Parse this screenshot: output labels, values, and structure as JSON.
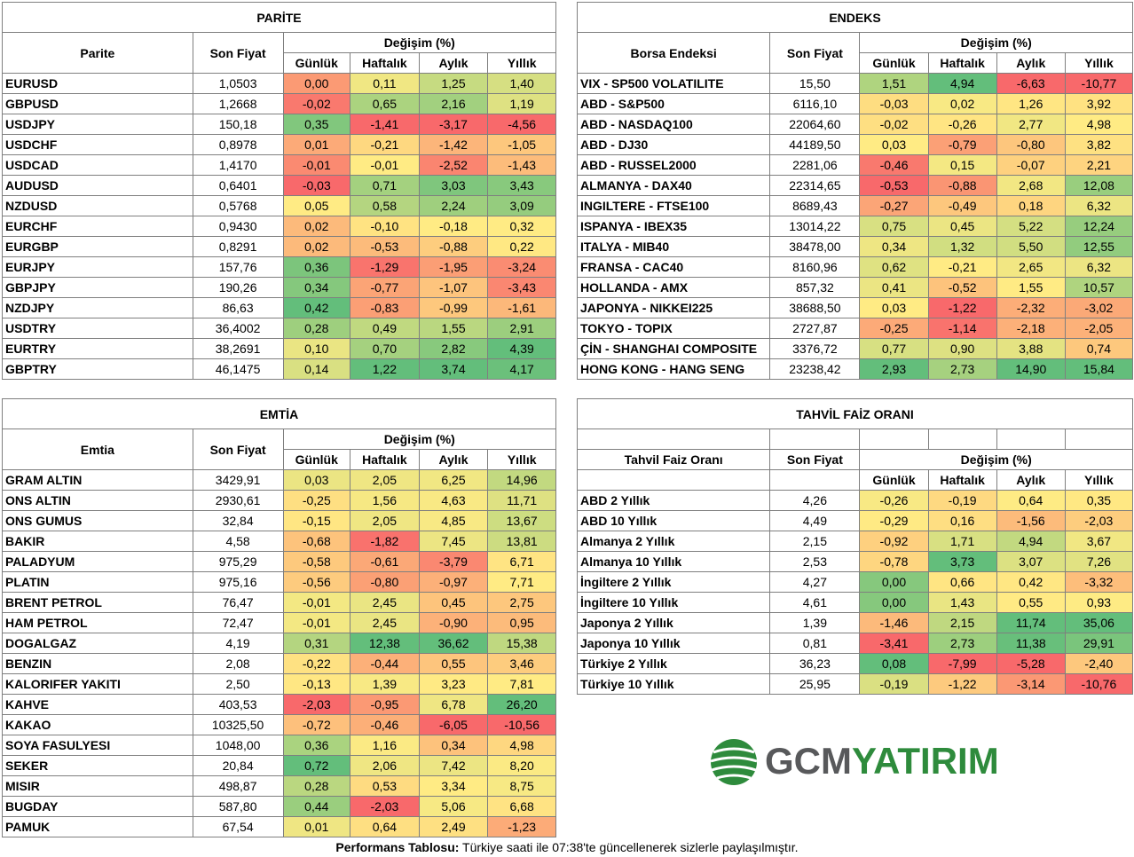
{
  "parite": {
    "title": "PARİTE",
    "name_header": "Parite",
    "price_header": "Son Fiyat",
    "change_header": "Değişim (%)",
    "periods": [
      "Günlük",
      "Haftalık",
      "Aylık",
      "Yıllık"
    ],
    "rows": [
      {
        "name": "EURUSD",
        "price": "1,0503",
        "d": "0,00",
        "w": "0,11",
        "m": "1,25",
        "y": "1,40"
      },
      {
        "name": "GBPUSD",
        "price": "1,2668",
        "d": "-0,02",
        "w": "0,65",
        "m": "2,16",
        "y": "1,19"
      },
      {
        "name": "USDJPY",
        "price": "150,18",
        "d": "0,35",
        "w": "-1,41",
        "m": "-3,17",
        "y": "-4,56"
      },
      {
        "name": "USDCHF",
        "price": "0,8978",
        "d": "0,01",
        "w": "-0,21",
        "m": "-1,42",
        "y": "-1,05"
      },
      {
        "name": "USDCAD",
        "price": "1,4170",
        "d": "-0,01",
        "w": "-0,01",
        "m": "-2,52",
        "y": "-1,43"
      },
      {
        "name": "AUDUSD",
        "price": "0,6401",
        "d": "-0,03",
        "w": "0,71",
        "m": "3,03",
        "y": "3,43"
      },
      {
        "name": "NZDUSD",
        "price": "0,5768",
        "d": "0,05",
        "w": "0,58",
        "m": "2,24",
        "y": "3,09"
      },
      {
        "name": "EURCHF",
        "price": "0,9430",
        "d": "0,02",
        "w": "-0,10",
        "m": "-0,18",
        "y": "0,32"
      },
      {
        "name": "EURGBP",
        "price": "0,8291",
        "d": "0,02",
        "w": "-0,53",
        "m": "-0,88",
        "y": "0,22"
      },
      {
        "name": "EURJPY",
        "price": "157,76",
        "d": "0,36",
        "w": "-1,29",
        "m": "-1,95",
        "y": "-3,24"
      },
      {
        "name": "GBPJPY",
        "price": "190,26",
        "d": "0,34",
        "w": "-0,77",
        "m": "-1,07",
        "y": "-3,43"
      },
      {
        "name": "NZDJPY",
        "price": "86,63",
        "d": "0,42",
        "w": "-0,83",
        "m": "-0,99",
        "y": "-1,61"
      },
      {
        "name": "USDTRY",
        "price": "36,4002",
        "d": "0,28",
        "w": "0,49",
        "m": "1,55",
        "y": "2,91"
      },
      {
        "name": "EURTRY",
        "price": "38,2691",
        "d": "0,10",
        "w": "0,70",
        "m": "2,82",
        "y": "4,39"
      },
      {
        "name": "GBPTRY",
        "price": "46,1475",
        "d": "0,14",
        "w": "1,22",
        "m": "3,74",
        "y": "4,17"
      }
    ]
  },
  "endeks": {
    "title": "ENDEKS",
    "name_header": "Borsa Endeksi",
    "price_header": "Son Fiyat",
    "change_header": "Değişim (%)",
    "periods": [
      "Günlük",
      "Haftalık",
      "Aylık",
      "Yıllık"
    ],
    "rows": [
      {
        "name": "VIX  - SP500 VOLATILITE",
        "price": "15,50",
        "d": "1,51",
        "w": "4,94",
        "m": "-6,63",
        "y": "-10,77"
      },
      {
        "name": "ABD - S&P500",
        "price": "6116,10",
        "d": "-0,03",
        "w": "0,02",
        "m": "1,26",
        "y": "3,92"
      },
      {
        "name": "ABD - NASDAQ100",
        "price": "22064,60",
        "d": "-0,02",
        "w": "-0,26",
        "m": "2,77",
        "y": "4,98"
      },
      {
        "name": "ABD - DJ30",
        "price": "44189,50",
        "d": "0,03",
        "w": "-0,79",
        "m": "-0,80",
        "y": "3,82"
      },
      {
        "name": "ABD - RUSSEL2000",
        "price": "2281,06",
        "d": "-0,46",
        "w": "0,15",
        "m": "-0,07",
        "y": "2,21"
      },
      {
        "name": "ALMANYA - DAX40",
        "price": "22314,65",
        "d": "-0,53",
        "w": "-0,88",
        "m": "2,68",
        "y": "12,08"
      },
      {
        "name": "INGILTERE - FTSE100",
        "price": "8689,43",
        "d": "-0,27",
        "w": "-0,49",
        "m": "0,18",
        "y": "6,32"
      },
      {
        "name": "ISPANYA - IBEX35",
        "price": "13014,22",
        "d": "0,75",
        "w": "0,45",
        "m": "5,22",
        "y": "12,24"
      },
      {
        "name": "ITALYA - MIB40",
        "price": "38478,00",
        "d": "0,34",
        "w": "1,32",
        "m": "5,50",
        "y": "12,55"
      },
      {
        "name": "FRANSA - CAC40",
        "price": "8160,96",
        "d": "0,62",
        "w": "-0,21",
        "m": "2,65",
        "y": "6,32"
      },
      {
        "name": "HOLLANDA - AMX",
        "price": "857,32",
        "d": "0,41",
        "w": "-0,52",
        "m": "1,55",
        "y": "10,57"
      },
      {
        "name": "JAPONYA - NIKKEI225",
        "price": "38688,50",
        "d": "0,03",
        "w": "-1,22",
        "m": "-2,32",
        "y": "-3,02"
      },
      {
        "name": "TOKYO - TOPIX",
        "price": "2727,87",
        "d": "-0,25",
        "w": "-1,14",
        "m": "-2,18",
        "y": "-2,05"
      },
      {
        "name": "ÇİN - SHANGHAI COMPOSITE",
        "price": "3376,72",
        "d": "0,77",
        "w": "0,90",
        "m": "3,88",
        "y": "0,74"
      },
      {
        "name": "HONG KONG - HANG SENG",
        "price": "23238,42",
        "d": "2,93",
        "w": "2,73",
        "m": "14,90",
        "y": "15,84"
      }
    ]
  },
  "emtia": {
    "title": "EMTİA",
    "name_header": "Emtia",
    "price_header": "Son Fiyat",
    "change_header": "Değişim (%)",
    "periods": [
      "Günlük",
      "Haftalık",
      "Aylık",
      "Yıllık"
    ],
    "rows": [
      {
        "name": "GRAM ALTIN",
        "price": "3429,91",
        "d": "0,03",
        "w": "2,05",
        "m": "6,25",
        "y": "14,96"
      },
      {
        "name": "ONS ALTIN",
        "price": "2930,61",
        "d": "-0,25",
        "w": "1,56",
        "m": "4,63",
        "y": "11,71"
      },
      {
        "name": "ONS GUMUS",
        "price": "32,84",
        "d": "-0,15",
        "w": "2,05",
        "m": "4,85",
        "y": "13,67"
      },
      {
        "name": "BAKIR",
        "price": "4,58",
        "d": "-0,68",
        "w": "-1,82",
        "m": "7,45",
        "y": "13,81"
      },
      {
        "name": "PALADYUM",
        "price": "975,29",
        "d": "-0,58",
        "w": "-0,61",
        "m": "-3,79",
        "y": "6,71"
      },
      {
        "name": "PLATIN",
        "price": "975,16",
        "d": "-0,56",
        "w": "-0,80",
        "m": "-0,97",
        "y": "7,71"
      },
      {
        "name": "BRENT PETROL",
        "price": "76,47",
        "d": "-0,01",
        "w": "2,45",
        "m": "0,45",
        "y": "2,75"
      },
      {
        "name": "HAM PETROL",
        "price": "72,47",
        "d": "-0,01",
        "w": "2,45",
        "m": "-0,90",
        "y": "0,95"
      },
      {
        "name": "DOGALGAZ",
        "price": "4,19",
        "d": "0,31",
        "w": "12,38",
        "m": "36,62",
        "y": "15,38"
      },
      {
        "name": "BENZIN",
        "price": "2,08",
        "d": "-0,22",
        "w": "-0,44",
        "m": "0,55",
        "y": "3,46"
      },
      {
        "name": "KALORIFER YAKITI",
        "price": "2,50",
        "d": "-0,13",
        "w": "1,39",
        "m": "3,23",
        "y": "7,81"
      },
      {
        "name": "KAHVE",
        "price": "403,53",
        "d": "-2,03",
        "w": "-0,95",
        "m": "6,78",
        "y": "26,20"
      },
      {
        "name": "KAKAO",
        "price": "10325,50",
        "d": "-0,72",
        "w": "-0,46",
        "m": "-6,05",
        "y": "-10,56"
      },
      {
        "name": "SOYA FASULYESI",
        "price": "1048,00",
        "d": "0,36",
        "w": "1,16",
        "m": "0,34",
        "y": "4,98"
      },
      {
        "name": "SEKER",
        "price": "20,84",
        "d": "0,72",
        "w": "2,06",
        "m": "7,42",
        "y": "8,20"
      },
      {
        "name": "MISIR",
        "price": "498,87",
        "d": "0,28",
        "w": "0,53",
        "m": "3,34",
        "y": "8,75"
      },
      {
        "name": "BUGDAY",
        "price": "587,80",
        "d": "0,44",
        "w": "-2,03",
        "m": "5,06",
        "y": "6,68"
      },
      {
        "name": "PAMUK",
        "price": "67,54",
        "d": "0,01",
        "w": "0,64",
        "m": "2,49",
        "y": "-1,23"
      }
    ]
  },
  "tahvil": {
    "title": "TAHVİL FAİZ ORANI",
    "name_header": "Tahvil Faiz Oranı",
    "price_header": "Son Fiyat",
    "change_header": "Değişim (%)",
    "periods": [
      "Günlük",
      "Haftalık",
      "Aylık",
      "Yıllık"
    ],
    "rows": [
      {
        "name": "ABD 2 Yıllık",
        "price": "4,26",
        "d": "-0,26",
        "w": "-0,19",
        "m": "0,64",
        "y": "0,35"
      },
      {
        "name": "ABD 10 Yıllık",
        "price": "4,49",
        "d": "-0,29",
        "w": "0,16",
        "m": "-1,56",
        "y": "-2,03"
      },
      {
        "name": "Almanya 2 Yıllık",
        "price": "2,15",
        "d": "-0,92",
        "w": "1,71",
        "m": "4,94",
        "y": "3,67"
      },
      {
        "name": "Almanya 10 Yıllık",
        "price": "2,53",
        "d": "-0,78",
        "w": "3,73",
        "m": "3,07",
        "y": "7,26"
      },
      {
        "name": "İngiltere 2 Yıllık",
        "price": "4,27",
        "d": "0,00",
        "w": "0,66",
        "m": "0,42",
        "y": "-3,32"
      },
      {
        "name": "İngiltere 10 Yıllık",
        "price": "4,61",
        "d": "0,00",
        "w": "1,43",
        "m": "0,55",
        "y": "0,93"
      },
      {
        "name": "Japonya 2 Yıllık",
        "price": "1,39",
        "d": "-1,46",
        "w": "2,15",
        "m": "11,74",
        "y": "35,06"
      },
      {
        "name": "Japonya 10 Yıllık",
        "price": "0,81",
        "d": "-3,41",
        "w": "2,73",
        "m": "11,38",
        "y": "29,91"
      },
      {
        "name": "Türkiye 2 Yıllık",
        "price": "36,23",
        "d": "0,08",
        "w": "-7,99",
        "m": "-5,28",
        "y": "-2,40"
      },
      {
        "name": "Türkiye 10 Yıllık",
        "price": "25,95",
        "d": "-0,19",
        "w": "-1,22",
        "m": "-3,14",
        "y": "-10,76"
      }
    ]
  },
  "logo": {
    "part1": "GCM",
    "part2": "YATIRIM"
  },
  "footer": {
    "bold": "Performans Tablosu:",
    "text": " Türkiye saati ile 07:38'te güncellenerek sizlerle paylaşılmıştır."
  },
  "colors": {
    "red": "#f8696b",
    "yellow": "#ffeb84",
    "green": "#63be7b",
    "logo_gray": "#58595b",
    "logo_green": "#2e8b3c"
  }
}
